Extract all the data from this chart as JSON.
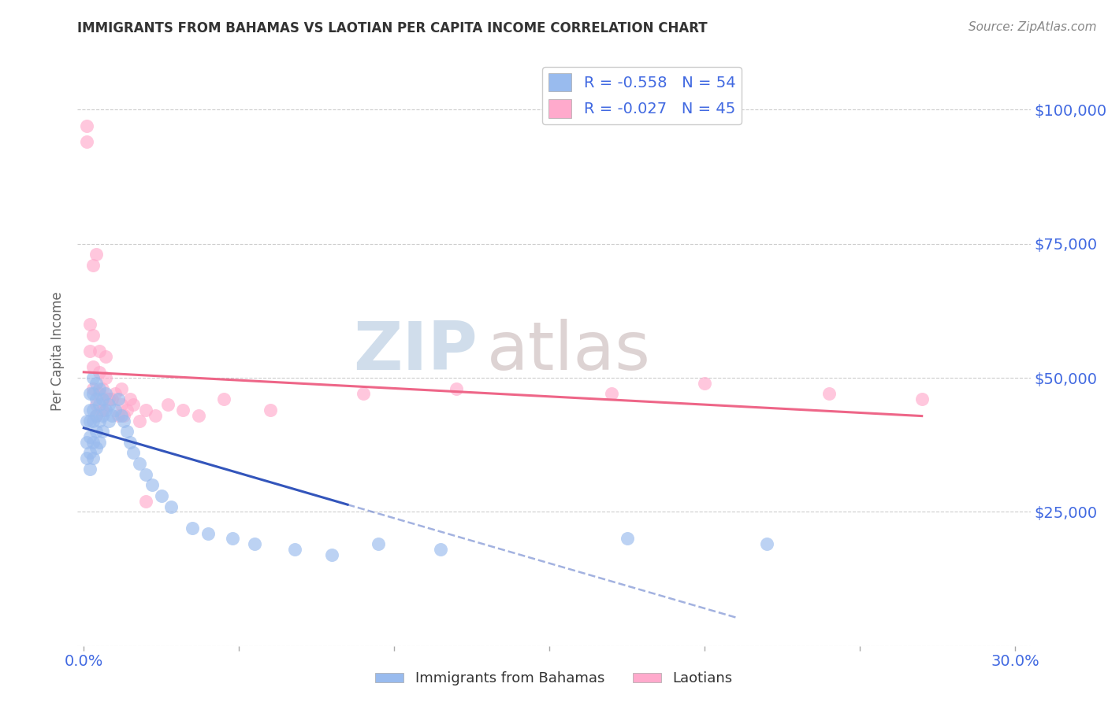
{
  "title": "IMMIGRANTS FROM BAHAMAS VS LAOTIAN PER CAPITA INCOME CORRELATION CHART",
  "source": "Source: ZipAtlas.com",
  "label_color": "#4169E1",
  "ylabel": "Per Capita Income",
  "ylim": [
    0,
    110000
  ],
  "xlim": [
    -0.002,
    0.305
  ],
  "watermark_zip": "ZIP",
  "watermark_atlas": "atlas",
  "legend_blue_label": "R = -0.558   N = 54",
  "legend_pink_label": "R = -0.027   N = 45",
  "bottom_legend_blue": "Immigrants from Bahamas",
  "bottom_legend_pink": "Laotians",
  "blue_color": "#99BBEE",
  "pink_color": "#FFAACC",
  "blue_line_color": "#3355BB",
  "pink_line_color": "#EE6688",
  "blue_scatter_x": [
    0.001,
    0.001,
    0.001,
    0.002,
    0.002,
    0.002,
    0.002,
    0.002,
    0.002,
    0.003,
    0.003,
    0.003,
    0.003,
    0.003,
    0.003,
    0.004,
    0.004,
    0.004,
    0.004,
    0.004,
    0.005,
    0.005,
    0.005,
    0.005,
    0.006,
    0.006,
    0.006,
    0.007,
    0.007,
    0.008,
    0.008,
    0.009,
    0.01,
    0.011,
    0.012,
    0.013,
    0.014,
    0.015,
    0.016,
    0.018,
    0.02,
    0.022,
    0.025,
    0.028,
    0.035,
    0.04,
    0.048,
    0.055,
    0.068,
    0.08,
    0.095,
    0.115,
    0.175,
    0.22
  ],
  "blue_scatter_y": [
    42000,
    38000,
    35000,
    47000,
    44000,
    42000,
    39000,
    36000,
    33000,
    50000,
    47000,
    44000,
    42000,
    38000,
    35000,
    49000,
    46000,
    43000,
    40000,
    37000,
    48000,
    45000,
    42000,
    38000,
    46000,
    43000,
    40000,
    47000,
    44000,
    45000,
    42000,
    43000,
    44000,
    46000,
    43000,
    42000,
    40000,
    38000,
    36000,
    34000,
    32000,
    30000,
    28000,
    26000,
    22000,
    21000,
    20000,
    19000,
    18000,
    17000,
    19000,
    18000,
    20000,
    19000
  ],
  "pink_scatter_x": [
    0.001,
    0.001,
    0.002,
    0.002,
    0.003,
    0.003,
    0.003,
    0.004,
    0.004,
    0.005,
    0.005,
    0.005,
    0.006,
    0.006,
    0.007,
    0.007,
    0.008,
    0.009,
    0.01,
    0.011,
    0.012,
    0.013,
    0.014,
    0.015,
    0.016,
    0.018,
    0.02,
    0.023,
    0.027,
    0.032,
    0.037,
    0.045,
    0.06,
    0.09,
    0.12,
    0.17,
    0.2,
    0.24,
    0.27,
    0.003,
    0.004,
    0.006,
    0.008,
    0.012,
    0.02
  ],
  "pink_scatter_y": [
    94000,
    97000,
    60000,
    55000,
    58000,
    52000,
    48000,
    45000,
    43000,
    55000,
    51000,
    47000,
    48000,
    44000,
    54000,
    50000,
    46000,
    46000,
    47000,
    43000,
    45000,
    43000,
    44000,
    46000,
    45000,
    42000,
    44000,
    43000,
    45000,
    44000,
    43000,
    46000,
    44000,
    47000,
    48000,
    47000,
    49000,
    47000,
    46000,
    71000,
    73000,
    44000,
    46000,
    48000,
    27000
  ]
}
